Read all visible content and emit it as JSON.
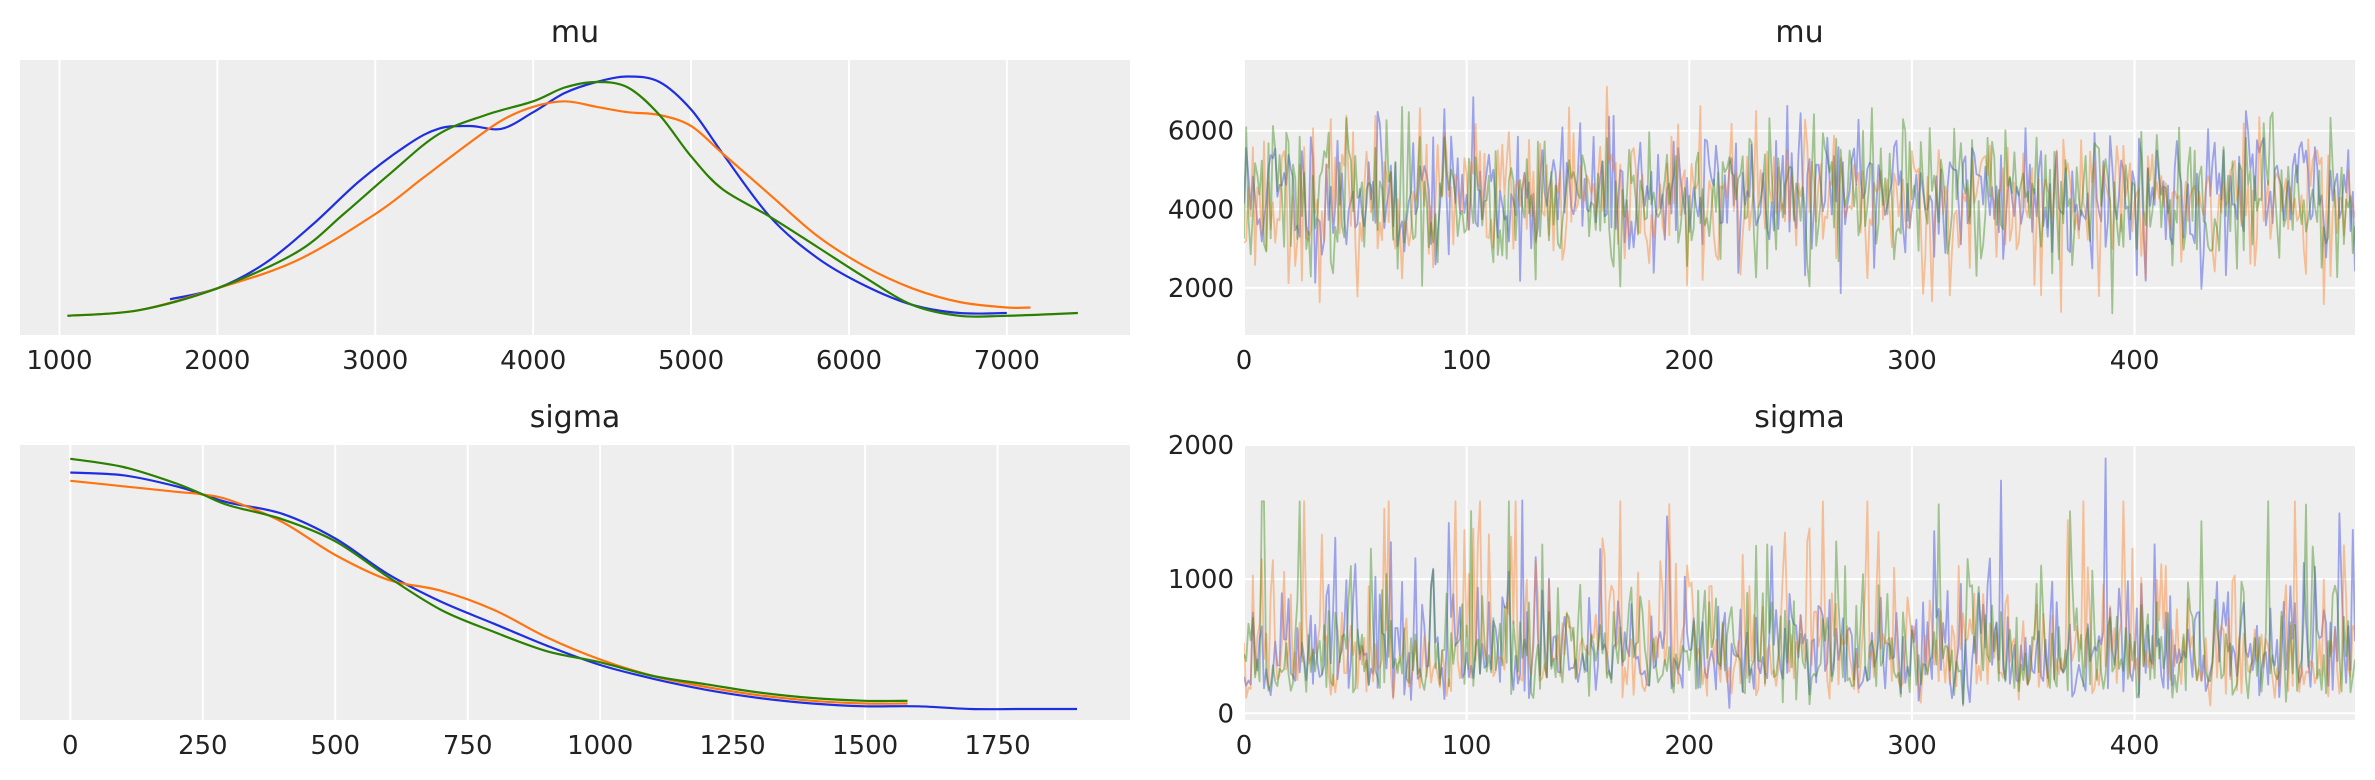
{
  "colors": {
    "chain_0": "#1f2fe0",
    "chain_1": "#ff7410",
    "chain_2": "#2a8000",
    "panel_bg": "#eeeeee",
    "grid": "#ffffff"
  },
  "chart_data": [
    {
      "id": "kde_mu",
      "type": "line",
      "title": "mu",
      "xlabel": "",
      "ylabel": "",
      "xlim": [
        750,
        7780
      ],
      "ylim": [
        0,
        1
      ],
      "xticks": [
        1000,
        2000,
        3000,
        4000,
        5000,
        6000,
        7000
      ],
      "xtick_labels": [
        "1000",
        "2000",
        "3000",
        "4000",
        "5000",
        "6000",
        "7000"
      ],
      "yticks": [],
      "grid": true,
      "legend": "none",
      "series": [
        {
          "x": [
            1700,
            2000,
            2300,
            2600,
            2900,
            3200,
            3400,
            3600,
            3800,
            4000,
            4200,
            4400,
            4600,
            4800,
            5000,
            5200,
            5500,
            5800,
            6100,
            6400,
            6700,
            7000
          ],
          "y": [
            0.13,
            0.17,
            0.26,
            0.4,
            0.56,
            0.69,
            0.75,
            0.76,
            0.75,
            0.81,
            0.88,
            0.92,
            0.94,
            0.92,
            0.82,
            0.66,
            0.43,
            0.28,
            0.18,
            0.11,
            0.08,
            0.08
          ]
        },
        {
          "x": [
            1050,
            1500,
            2000,
            2500,
            3000,
            3300,
            3600,
            3800,
            4000,
            4200,
            4400,
            4600,
            4800,
            5000,
            5200,
            5500,
            5800,
            6100,
            6400,
            6700,
            7000,
            7150
          ],
          "y": [
            0.07,
            0.09,
            0.17,
            0.27,
            0.44,
            0.57,
            0.7,
            0.78,
            0.83,
            0.85,
            0.83,
            0.81,
            0.8,
            0.76,
            0.66,
            0.51,
            0.36,
            0.25,
            0.17,
            0.12,
            0.1,
            0.1
          ]
        },
        {
          "x": [
            1050,
            1500,
            2000,
            2500,
            2800,
            3100,
            3400,
            3700,
            4000,
            4200,
            4400,
            4600,
            4800,
            5000,
            5200,
            5500,
            5800,
            6100,
            6400,
            6700,
            7000,
            7450
          ],
          "y": [
            0.07,
            0.09,
            0.17,
            0.3,
            0.44,
            0.59,
            0.73,
            0.8,
            0.85,
            0.9,
            0.92,
            0.9,
            0.8,
            0.65,
            0.53,
            0.43,
            0.32,
            0.21,
            0.11,
            0.07,
            0.07,
            0.08
          ]
        }
      ]
    },
    {
      "id": "trace_mu",
      "type": "line",
      "title": "mu",
      "xlabel": "",
      "ylabel": "",
      "xlim": [
        0,
        499
      ],
      "ylim": [
        800,
        7800
      ],
      "xticks": [
        0,
        100,
        200,
        300,
        400
      ],
      "xtick_labels": [
        "0",
        "100",
        "200",
        "300",
        "400"
      ],
      "yticks": [
        2000,
        4000,
        6000
      ],
      "ytick_labels": [
        "2000",
        "4000",
        "6000"
      ],
      "grid": true,
      "legend": "none",
      "n_draws": 500,
      "opacity": 0.4,
      "series": [
        {
          "x_range": [
            0,
            499
          ],
          "mean": 4400,
          "sd": 900,
          "min": 1700,
          "max": 7000,
          "seed": 11
        },
        {
          "x_range": [
            0,
            499
          ],
          "mean": 4200,
          "sd": 950,
          "min": 1100,
          "max": 7150,
          "seed": 23
        },
        {
          "x_range": [
            0,
            499
          ],
          "mean": 4300,
          "sd": 950,
          "min": 1050,
          "max": 7450,
          "seed": 37
        }
      ]
    },
    {
      "id": "kde_sigma",
      "type": "line",
      "title": "sigma",
      "xlabel": "",
      "ylabel": "",
      "xlim": [
        -95,
        2000
      ],
      "ylim": [
        0,
        1
      ],
      "xticks": [
        0,
        250,
        500,
        750,
        1000,
        1250,
        1500,
        1750
      ],
      "xtick_labels": [
        "0",
        "250",
        "500",
        "750",
        "1000",
        "1250",
        "1500",
        "1750"
      ],
      "yticks": [],
      "grid": true,
      "legend": "none",
      "series": [
        {
          "x": [
            0,
            100,
            200,
            250,
            300,
            400,
            500,
            600,
            700,
            800,
            900,
            1000,
            1100,
            1200,
            1300,
            1400,
            1500,
            1600,
            1700,
            1800,
            1900
          ],
          "y": [
            0.9,
            0.89,
            0.85,
            0.82,
            0.79,
            0.75,
            0.66,
            0.53,
            0.43,
            0.35,
            0.27,
            0.2,
            0.15,
            0.11,
            0.08,
            0.06,
            0.05,
            0.05,
            0.04,
            0.04,
            0.04
          ]
        },
        {
          "x": [
            0,
            100,
            200,
            250,
            300,
            400,
            500,
            600,
            700,
            800,
            900,
            1000,
            1100,
            1200,
            1300,
            1400,
            1500,
            1580
          ],
          "y": [
            0.87,
            0.85,
            0.83,
            0.82,
            0.8,
            0.72,
            0.6,
            0.51,
            0.47,
            0.4,
            0.3,
            0.22,
            0.16,
            0.12,
            0.09,
            0.07,
            0.06,
            0.06
          ]
        },
        {
          "x": [
            0,
            100,
            200,
            250,
            300,
            400,
            500,
            600,
            700,
            800,
            900,
            1000,
            1100,
            1200,
            1300,
            1400,
            1500,
            1580
          ],
          "y": [
            0.95,
            0.92,
            0.86,
            0.82,
            0.78,
            0.73,
            0.65,
            0.52,
            0.4,
            0.32,
            0.25,
            0.21,
            0.16,
            0.13,
            0.1,
            0.08,
            0.07,
            0.07
          ]
        }
      ]
    },
    {
      "id": "trace_sigma",
      "type": "line",
      "title": "sigma",
      "xlabel": "",
      "ylabel": "",
      "xlim": [
        0,
        499
      ],
      "ylim": [
        -50,
        2000
      ],
      "xticks": [
        0,
        100,
        200,
        300,
        400
      ],
      "xtick_labels": [
        "0",
        "100",
        "200",
        "300",
        "400"
      ],
      "yticks": [
        0,
        1000,
        2000
      ],
      "ytick_labels": [
        "0",
        "1000",
        "2000"
      ],
      "grid": true,
      "legend": "none",
      "n_draws": 500,
      "opacity": 0.4,
      "series": [
        {
          "x_range": [
            0,
            499
          ],
          "mean": 430,
          "sd": 300,
          "min": 0,
          "max": 1900,
          "seed": 51
        },
        {
          "x_range": [
            0,
            499
          ],
          "mean": 440,
          "sd": 300,
          "min": 0,
          "max": 1580,
          "seed": 67
        },
        {
          "x_range": [
            0,
            499
          ],
          "mean": 430,
          "sd": 300,
          "min": 0,
          "max": 1580,
          "seed": 83
        }
      ]
    }
  ]
}
